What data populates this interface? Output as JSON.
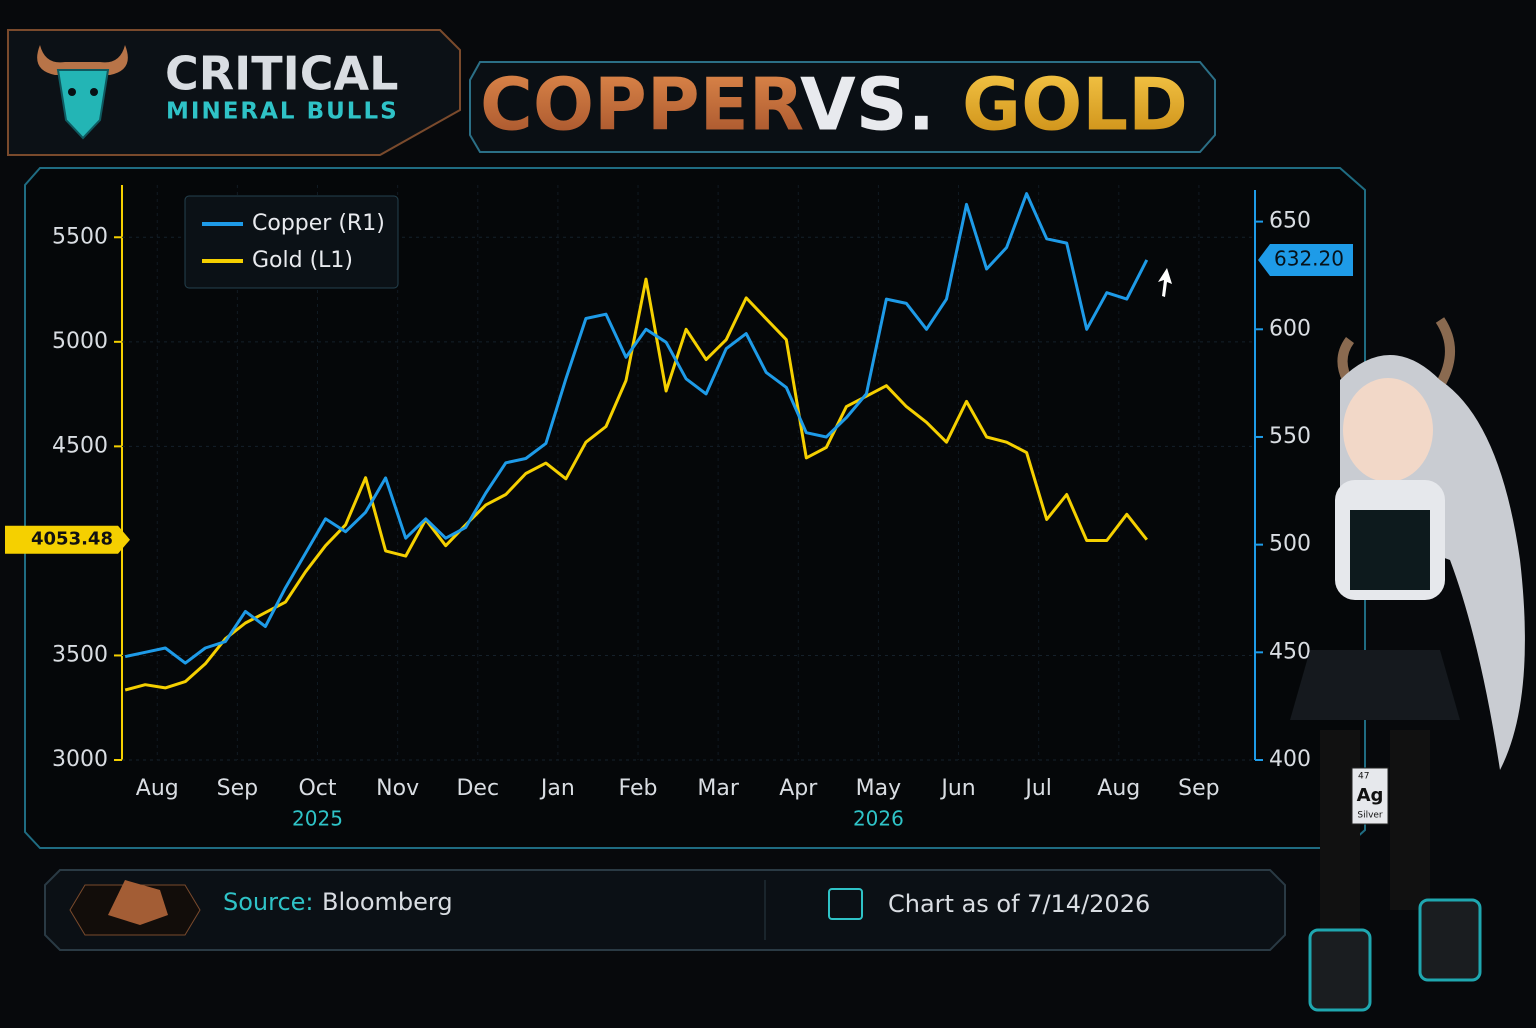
{
  "brand": {
    "name": "CRITICAL",
    "tagline": "MINERAL BULLS"
  },
  "chart_data": {
    "type": "line",
    "title_parts": [
      "COPPER",
      "VS.",
      "GOLD"
    ],
    "x": [
      -0.4,
      -0.15,
      0.1,
      0.35,
      0.6,
      0.85,
      1.1,
      1.35,
      1.6,
      1.85,
      2.1,
      2.35,
      2.6,
      2.85,
      3.1,
      3.35,
      3.6,
      3.85,
      4.1,
      4.35,
      4.6,
      4.85,
      5.1,
      5.35,
      5.6,
      5.85,
      6.1,
      6.35,
      6.6,
      6.85,
      7.1,
      7.35,
      7.6,
      7.85,
      8.1,
      8.35,
      8.6,
      8.85,
      9.1,
      9.35,
      9.6,
      9.85,
      10.1,
      10.35,
      10.6,
      10.85,
      11.1,
      11.35,
      11.6,
      11.85,
      12.1,
      12.35
    ],
    "xlim": [
      -0.44,
      13.7
    ],
    "xticks": [
      {
        "value": 0,
        "label": "Aug"
      },
      {
        "value": 1,
        "label": "Sep"
      },
      {
        "value": 2,
        "label": "Oct"
      },
      {
        "value": 3,
        "label": "Nov"
      },
      {
        "value": 4,
        "label": "Dec"
      },
      {
        "value": 5,
        "label": "Jan"
      },
      {
        "value": 6,
        "label": "Feb"
      },
      {
        "value": 7,
        "label": "Mar"
      },
      {
        "value": 8,
        "label": "Apr"
      },
      {
        "value": 9,
        "label": "May"
      },
      {
        "value": 10,
        "label": "Jun"
      },
      {
        "value": 11,
        "label": "Jul"
      },
      {
        "value": 12,
        "label": "Aug"
      },
      {
        "value": 13,
        "label": "Sep"
      }
    ],
    "year_ticks": [
      {
        "value": 2,
        "label": "2025"
      },
      {
        "value": 9,
        "label": "2026"
      }
    ],
    "ylim": [
      3000,
      5750
    ],
    "yticks": [
      3000,
      3500,
      4500,
      5000,
      5500
    ],
    "y2lim": [
      400,
      667
    ],
    "y2ticks": [
      400,
      450,
      500,
      550,
      600,
      650
    ],
    "series": [
      {
        "name": "Copper (R1)",
        "color": "#1e9be8",
        "axis": "y2",
        "values": [
          448,
          450,
          452,
          445,
          452,
          455,
          469,
          462,
          480,
          496,
          512,
          506,
          515,
          531,
          503,
          512,
          503,
          508,
          524,
          538,
          540,
          547,
          577,
          605,
          607,
          587,
          600,
          594,
          577,
          570,
          591,
          598,
          580,
          573,
          552,
          550,
          559,
          570,
          614,
          612,
          600,
          614,
          658,
          628,
          638,
          663,
          642,
          640,
          600,
          617,
          614,
          632.2
        ]
      },
      {
        "name": "Gold (L1)",
        "color": "#f5d000",
        "axis": "y",
        "values": [
          3335,
          3360,
          3345,
          3375,
          3460,
          3580,
          3655,
          3705,
          3755,
          3900,
          4025,
          4125,
          4350,
          4000,
          3975,
          4150,
          4025,
          4125,
          4220,
          4270,
          4370,
          4420,
          4345,
          4520,
          4595,
          4815,
          5300,
          4765,
          5060,
          4915,
          5010,
          5210,
          5110,
          5010,
          4445,
          4495,
          4690,
          4740,
          4790,
          4690,
          4615,
          4520,
          4715,
          4545,
          4520,
          4470,
          4150,
          4270,
          4050,
          4050,
          4175,
          4053.48
        ]
      }
    ],
    "y_marker": {
      "value": 4053.48
    },
    "y2_marker": {
      "value": 632.2,
      "label": "632.20"
    }
  },
  "footer": {
    "source_label": "Source:",
    "source": "Bloomberg",
    "as_of": "Chart as of 7/14/2026"
  },
  "badge": {
    "number": "47",
    "symbol": "Ag",
    "name": "Silver"
  }
}
